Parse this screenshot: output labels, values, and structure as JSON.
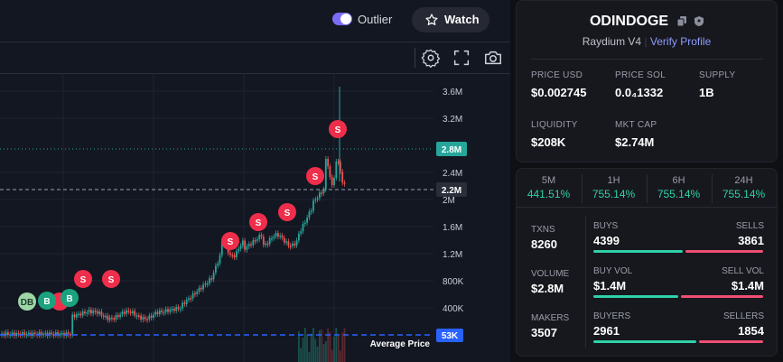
{
  "header": {
    "toggle_label": "Outlier",
    "watch_label": "Watch"
  },
  "chart": {
    "price_labels": [
      "3.6M",
      "3.2M",
      "2.4M",
      "2M",
      "1.6M",
      "1.2M",
      "800K",
      "400K"
    ],
    "current_price_label": "2.8M",
    "crosshair_label": "2.2M",
    "average_label": "Average Price",
    "average_value": "53K",
    "markers": [
      {
        "letter": "DB",
        "kind": "db"
      },
      {
        "letter": "B",
        "kind": "buy"
      },
      {
        "letter": "B",
        "kind": "buy"
      },
      {
        "letter": "S",
        "kind": "sell"
      },
      {
        "letter": "S",
        "kind": "sell"
      },
      {
        "letter": "S",
        "kind": "sell"
      },
      {
        "letter": "S",
        "kind": "sell"
      },
      {
        "letter": "S",
        "kind": "sell"
      },
      {
        "letter": "S",
        "kind": "sell"
      },
      {
        "letter": "S",
        "kind": "sell"
      }
    ],
    "colors": {
      "up": "#26a69a",
      "down": "#ef5350",
      "buy": "#1aa37e",
      "sell": "#ef2e4b",
      "accent": "#2962ff"
    }
  },
  "token": {
    "name": "ODINDOGE",
    "dex": "Raydium V4",
    "verify": "Verify Profile",
    "price_usd_label": "PRICE USD",
    "price_usd": "$0.002745",
    "price_sol_label": "PRICE SOL",
    "price_sol": "0.0₄1332",
    "supply_label": "SUPPLY",
    "supply": "1B",
    "liquidity_label": "LIQUIDITY",
    "liquidity": "$208K",
    "mktcap_label": "MKT CAP",
    "mktcap": "$2.74M"
  },
  "timeframes": [
    {
      "label": "5M",
      "pct": "441.51%"
    },
    {
      "label": "1H",
      "pct": "755.14%"
    },
    {
      "label": "6H",
      "pct": "755.14%"
    },
    {
      "label": "24H",
      "pct": "755.14%"
    }
  ],
  "txns": {
    "txns_label": "TXNS",
    "txns": "8260",
    "buys_label": "BUYS",
    "buys": "4399",
    "sells_label": "SELLS",
    "sells": "3861",
    "volume_label": "VOLUME",
    "volume": "$2.8M",
    "buy_vol_label": "BUY VOL",
    "buy_vol": "$1.4M",
    "sell_vol_label": "SELL VOL",
    "sell_vol": "$1.4M",
    "makers_label": "MAKERS",
    "makers": "3507",
    "buyers_label": "BUYERS",
    "buyers": "2961",
    "sellers_label": "SELLERS",
    "sellers": "1854"
  }
}
